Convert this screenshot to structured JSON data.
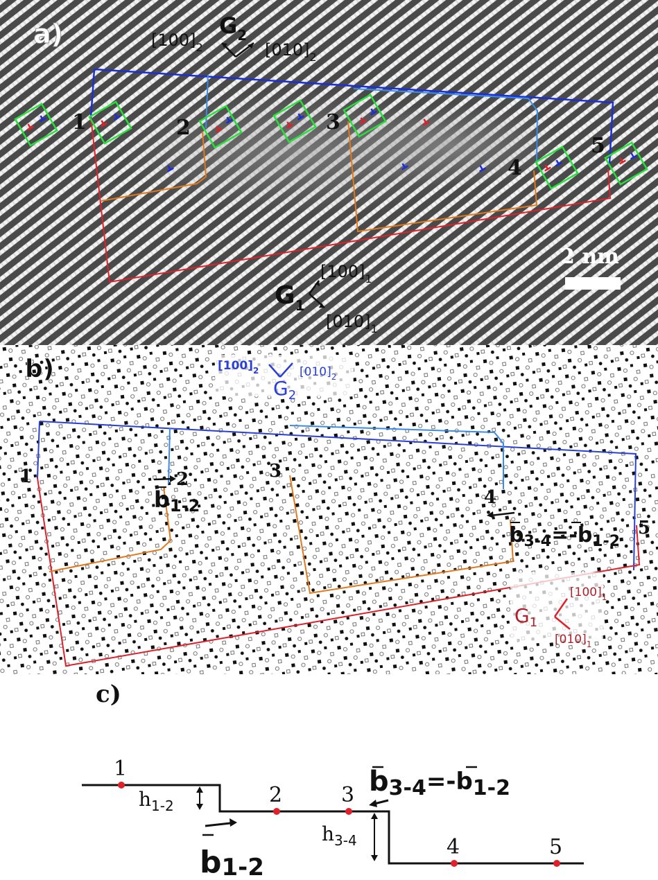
{
  "panel_a": {
    "label": "a)",
    "grain2": {
      "name": "G",
      "sub": "2",
      "dir1": "[100]",
      "dir1_sub": "2",
      "dir2": "[010]",
      "dir2_sub": "2"
    },
    "grain1": {
      "name": "G",
      "sub": "1",
      "dir1": "[100]",
      "dir1_sub": "1",
      "dir2": "[010]",
      "dir2_sub": "1"
    },
    "points": [
      "1",
      "2",
      "3",
      "4",
      "5"
    ],
    "scalebar": "2 nm",
    "colors": {
      "top_boundary": "#1c2fd6",
      "bottom_boundary": "#e0202a",
      "circuit_upper": "#3b8be8",
      "circuit_lower": "#e07a1c",
      "burgers_box": "#27e03a",
      "dislocation_red": "#e0202a",
      "dislocation_blue": "#1c2fd6"
    }
  },
  "panel_b": {
    "label": "b)",
    "grain2": {
      "name": "G",
      "sub": "2",
      "dir1": "[100]",
      "dir1_sub": "2",
      "dir2": "[010]",
      "dir2_sub": "2"
    },
    "grain1": {
      "name": "G",
      "sub": "1",
      "dir1": "[100]",
      "dir1_sub": "1",
      "dir2": "[010]",
      "dir2_sub": "1"
    },
    "points": [
      "1",
      "2",
      "3",
      "4",
      "5"
    ],
    "b12": {
      "base": "b",
      "sub": "1-2"
    },
    "b34": {
      "base": "b",
      "sub": "3-4",
      "eq": "=-b",
      "eq_sub": "1-2"
    }
  },
  "panel_c": {
    "label": "c)",
    "points": [
      "1",
      "2",
      "3",
      "4",
      "5"
    ],
    "h12": {
      "base": "h",
      "sub": "1-2"
    },
    "h34": {
      "base": "h",
      "sub": "3-4"
    },
    "b12": {
      "base": "b",
      "sub": "1-2"
    },
    "b34": {
      "base": "b",
      "sub": "3-4",
      "eq": "=-b",
      "eq_sub": "1-2"
    }
  }
}
